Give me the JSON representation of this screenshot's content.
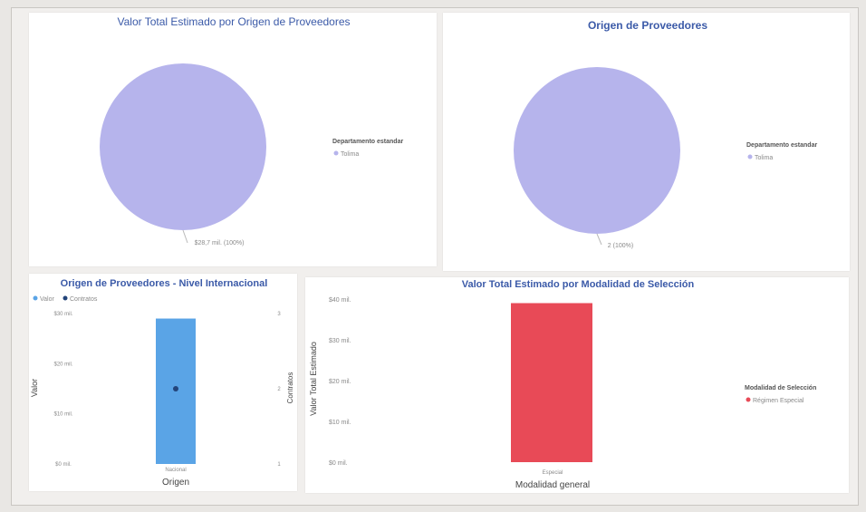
{
  "charts": [
    {
      "type": "pie",
      "title": "Valor Total Estimado por Origen de Proveedores",
      "legend_title": "Departamento estandar",
      "slices": [
        {
          "label": "Tolima",
          "value": 28.7,
          "display": "$28,7 mil. (100%)",
          "color": "#b6b4ec"
        }
      ],
      "legend_placement": "right"
    },
    {
      "type": "pie",
      "title": "Origen de Proveedores",
      "legend_title": "Departamento estandar",
      "slices": [
        {
          "label": "Tolima",
          "value": 2,
          "display": "2 (100%)",
          "color": "#b6b4ec"
        }
      ],
      "legend_placement": "right"
    },
    {
      "type": "bar",
      "title": "Origen de Proveedores - Nivel Internacional",
      "legend": [
        {
          "label": "Valor",
          "color": "#5aa4e6"
        },
        {
          "label": "Contratos",
          "color": "#23447a"
        }
      ],
      "categories": [
        "Nacional"
      ],
      "series": [
        {
          "name": "Valor",
          "values": [
            29
          ],
          "color": "#5aa4e6"
        },
        {
          "name": "Contratos",
          "values": [
            2
          ],
          "color": "#23447a"
        }
      ],
      "xlabel": "Origen",
      "ylabel": "Valor",
      "y2label": "Contratos",
      "ylim": [
        0,
        30
      ],
      "y2lim": [
        1,
        3
      ],
      "yticks": [
        "$0 mil.",
        "$10 mil.",
        "$20 mil.",
        "$30 mil."
      ],
      "ytick_values": [
        0,
        10,
        20,
        30
      ],
      "y2ticks": [
        "1",
        "2",
        "3"
      ],
      "y2tick_values": [
        1,
        2,
        3
      ]
    },
    {
      "type": "bar",
      "title": "Valor Total Estimado por Modalidad de Selección",
      "legend_title": "Modalidad de Selección",
      "legend": [
        {
          "label": "Régimen Especial",
          "color": "#e84a57"
        }
      ],
      "categories": [
        "Especial"
      ],
      "values": [
        39
      ],
      "color": "#e84a57",
      "xlabel": "Modalidad general",
      "ylabel": "Valor Total Estimado",
      "ylim": [
        0,
        40
      ],
      "yticks": [
        "$0 mil.",
        "$10 mil.",
        "$20 mil.",
        "$30 mil.",
        "$40 mil."
      ],
      "ytick_values": [
        0,
        10,
        20,
        30,
        40
      ]
    }
  ]
}
